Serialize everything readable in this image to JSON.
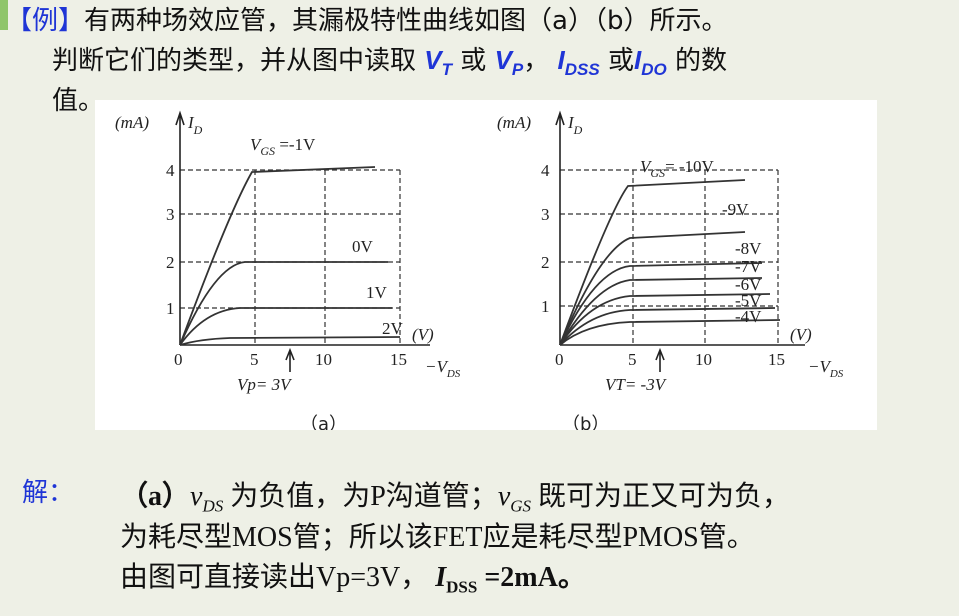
{
  "problem": {
    "label": "【例】",
    "line1": "有两种场效应管，其漏极特性曲线如图（a）（b）所示。",
    "line2": "判断它们的类型，并从图中读取",
    "vt": "V",
    "vt_sub": "T",
    "or1": "或",
    "vp": "V",
    "vp_sub": "P",
    "comma": "，",
    "idss": "I",
    "idss_sub": "DSS",
    "or2": "或",
    "ido": "I",
    "ido_sub": "DO",
    "line2_end": "的数",
    "line3": "值。"
  },
  "figure_a": {
    "y_unit": "(mA)",
    "y_label": "I",
    "y_label_sub": "D",
    "x_unit": "(V)",
    "x_label": "−V",
    "x_label_sub": "DS",
    "yticks": [
      "1",
      "2",
      "3",
      "4"
    ],
    "xticks": [
      "0",
      "5",
      "10",
      "15"
    ],
    "curves": [
      {
        "sym": "V",
        "sub": "GS",
        "label": " =-1V"
      },
      {
        "label": "0V"
      },
      {
        "label": "1V"
      },
      {
        "label": "2V"
      }
    ],
    "note": "Vp= 3V",
    "caption": "（a）"
  },
  "figure_b": {
    "y_unit": "(mA)",
    "y_label": "I",
    "y_label_sub": "D",
    "x_unit": "(V)",
    "x_label": "−V",
    "x_label_sub": "DS",
    "yticks": [
      "1",
      "2",
      "3",
      "4"
    ],
    "xticks": [
      "0",
      "5",
      "10",
      "15"
    ],
    "curves": [
      {
        "sym": "V",
        "sub": "GS",
        "label": "= -10V"
      },
      {
        "label": "-9V"
      },
      {
        "label": "-8V"
      },
      {
        "label": "-7V"
      },
      {
        "label": "-6V"
      },
      {
        "label": "-5V"
      },
      {
        "label": "-4V"
      }
    ],
    "note": "VT= -3V",
    "caption": "（b）"
  },
  "solution": {
    "label": "解：",
    "l1a": "（a）",
    "l1b": "v",
    "l1b_sub": "DS",
    "l1c": "为负值，为P沟道管；",
    "l1d": "v",
    "l1d_sub": "GS",
    "l1e": "既可为正又可为负，",
    "l2": "为耗尽型MOS管；所以该FET应是耗尽型PMOS管。",
    "l3a": "由图可直接读出Vp=3V，",
    "l3b": "I",
    "l3b_sub": "DSS",
    "l3c": "=2mA。"
  }
}
